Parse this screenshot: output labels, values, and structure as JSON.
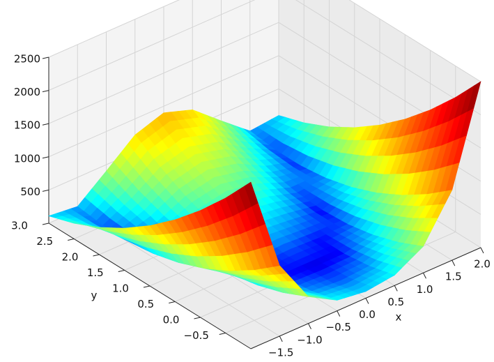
{
  "chart_data": {
    "type": "surface",
    "colormap": "jet",
    "xlabel": "x",
    "ylabel": "y",
    "x": [
      -2,
      -1.5,
      -1,
      -0.5,
      0,
      0.5,
      1,
      1.5,
      2
    ],
    "y": [
      -1,
      -0.5,
      0,
      0.5,
      1,
      1.5,
      2,
      2.5,
      3
    ],
    "z": [
      [
        2509,
        1062.5,
        404,
        158.5,
        101,
        156.5,
        400,
        1056.5,
        2501
      ],
      [
        2034,
        762.5,
        229,
        58.5,
        26,
        56.5,
        225,
        756.5,
        2026
      ],
      [
        1609,
        512.5,
        104,
        8.5,
        1,
        6.5,
        100,
        506.5,
        1601
      ],
      [
        1234,
        312.5,
        29,
        8.5,
        26,
        6.5,
        25,
        306.5,
        1226
      ],
      [
        909,
        162.5,
        4,
        58.5,
        101,
        56.5,
        0,
        156.5,
        901
      ],
      [
        634,
        62.5,
        29,
        158.5,
        226,
        156.5,
        25,
        56.5,
        626
      ],
      [
        409,
        12.5,
        104,
        308.5,
        401,
        306.5,
        100,
        6.5,
        401
      ],
      [
        234,
        12.5,
        229,
        508.5,
        626,
        506.5,
        225,
        6.5,
        226
      ],
      [
        109,
        62.5,
        404,
        758.5,
        901,
        756.5,
        400,
        56.5,
        101
      ]
    ],
    "xlim": [
      -2,
      2
    ],
    "ylim": [
      -1,
      3
    ],
    "zlim": [
      0,
      2500
    ],
    "xticks": [
      {
        "value": -1.5,
        "label": "−1.5"
      },
      {
        "value": -1,
        "label": "−1.0"
      },
      {
        "value": -0.5,
        "label": "−0.5"
      },
      {
        "value": 0,
        "label": "0.0"
      },
      0.5,
      {
        "value": 1,
        "label": "1.0"
      },
      1.5,
      {
        "value": 2,
        "label": "2.0"
      }
    ],
    "yticks": [
      {
        "value": -0.5,
        "label": "−0.5"
      },
      {
        "value": 0,
        "label": "0.0"
      },
      0.5,
      {
        "value": 1,
        "label": "1.0"
      },
      1.5,
      {
        "value": 2,
        "label": "2.0"
      },
      2.5,
      {
        "value": 3,
        "label": "3.0"
      }
    ],
    "zticks": [
      500,
      1000,
      1500,
      2000,
      2500
    ],
    "grid": true
  }
}
